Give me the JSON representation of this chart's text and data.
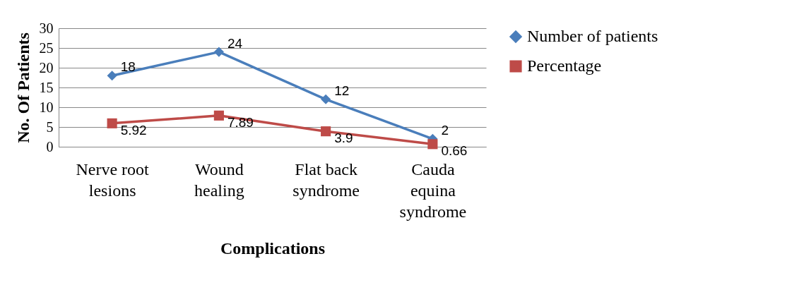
{
  "chart_data": {
    "type": "line",
    "xlabel": "Complications",
    "ylabel": "No. Of Patients",
    "categories": [
      "Nerve root lesions",
      "Wound healing",
      "Flat back syndrome",
      "Cauda equina syndrome"
    ],
    "series": [
      {
        "name": "Number of patients",
        "color": "#4a7ebb",
        "marker": "diamond",
        "values": [
          18,
          24,
          12,
          2
        ]
      },
      {
        "name": "Percentage",
        "color": "#be4b48",
        "marker": "square",
        "values": [
          5.92,
          7.89,
          3.9,
          0.66
        ]
      }
    ],
    "ylim": [
      0,
      30
    ],
    "yticks": [
      0,
      5,
      10,
      15,
      20,
      25,
      30
    ],
    "grid": "y",
    "legend": "right",
    "data_labels": true,
    "line_style": "solid"
  }
}
